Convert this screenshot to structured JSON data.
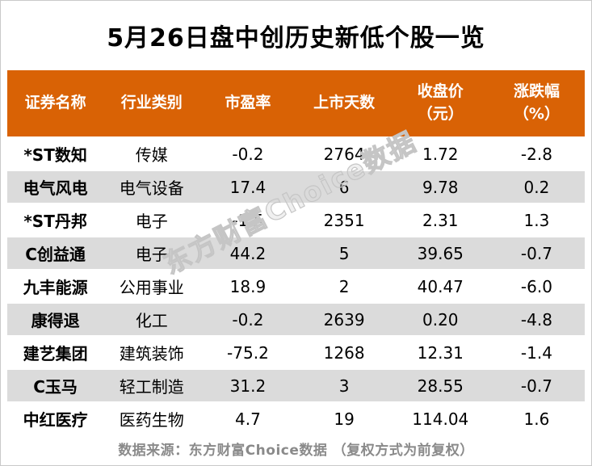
{
  "title": "5月26日盘中创历史新低个股一览",
  "watermark": "东方财富Choice数据",
  "footer": "数据来源：东方财富Choice数据 （复权方式为前复权）",
  "colors": {
    "header_bg": "#D96205",
    "header_text": "#FFFFFF",
    "alt_row_bg": "#DBDBDB",
    "body_text": "#000000",
    "footer_text": "#8A8A8A",
    "watermark_stroke": "#C5C5C5"
  },
  "table": {
    "header_cells": [
      {
        "line1": "证券名称",
        "line2": ""
      },
      {
        "line1": "行业类别",
        "line2": ""
      },
      {
        "line1": "市盈率",
        "line2": ""
      },
      {
        "line1": "上市天数",
        "line2": ""
      },
      {
        "line1": "收盘价",
        "line2": "（元）"
      },
      {
        "line1": "涨跌幅",
        "line2": "（%）"
      }
    ]
  },
  "chart_data": {
    "type": "table",
    "title": "5月26日盘中创历史新低个股一览",
    "columns": [
      "证券名称",
      "行业类别",
      "市盈率",
      "上市天数",
      "收盘价（元）",
      "涨跌幅（%）"
    ],
    "rows": [
      [
        "*ST数知",
        "传媒",
        "-0.2",
        "2764",
        "1.72",
        "-2.8"
      ],
      [
        "电气风电",
        "电气设备",
        "17.4",
        "6",
        "9.78",
        "0.2"
      ],
      [
        "*ST丹邦",
        "电子",
        "-1.5",
        "2351",
        "2.31",
        "1.3"
      ],
      [
        "C创益通",
        "电子",
        "44.2",
        "5",
        "39.65",
        "-0.7"
      ],
      [
        "九丰能源",
        "公用事业",
        "18.9",
        "2",
        "40.47",
        "-6.0"
      ],
      [
        "康得退",
        "化工",
        "-0.2",
        "2639",
        "0.20",
        "-4.8"
      ],
      [
        "建艺集团",
        "建筑装饰",
        "-75.2",
        "1268",
        "12.31",
        "-1.4"
      ],
      [
        "C玉马",
        "轻工制造",
        "31.2",
        "3",
        "28.55",
        "-0.7"
      ],
      [
        "中红医疗",
        "医药生物",
        "4.7",
        "19",
        "114.04",
        "1.6"
      ]
    ],
    "source_note": "数据来源：东方财富Choice数据 （复权方式为前复权）"
  }
}
